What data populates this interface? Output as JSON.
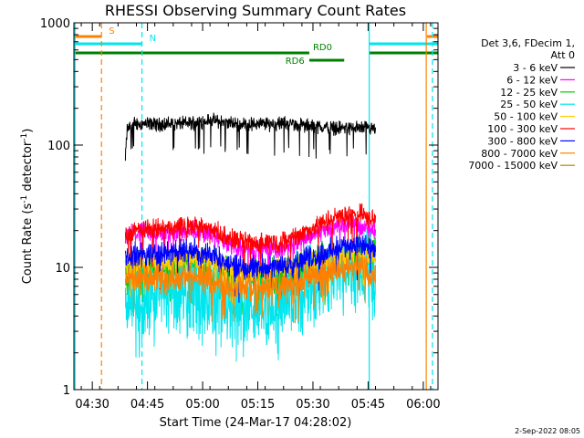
{
  "chart_data": {
    "type": "line",
    "title": "RHESSI Observing Summary Count Rates",
    "xlabel": "Start Time (24-Mar-17 04:28:02)",
    "ylabel": "Count Rate (s",
    "ylabel_sup1": "-1",
    "ylabel_mid": " detector",
    "ylabel_sup2": "-1",
    "ylabel_end": ")",
    "y_scale": "log",
    "ylim": [
      1,
      1000
    ],
    "xlim": [
      -2,
      97
    ],
    "x_ticks": [
      {
        "t": 3,
        "label": "04:30"
      },
      {
        "t": 18,
        "label": "04:45"
      },
      {
        "t": 33,
        "label": "05:00"
      },
      {
        "t": 48,
        "label": "05:15"
      },
      {
        "t": 63,
        "label": "05:30"
      },
      {
        "t": 78,
        "label": "05:45"
      },
      {
        "t": 93,
        "label": "06:00"
      }
    ],
    "y_ticks": [
      {
        "v": 1,
        "label": "1"
      },
      {
        "v": 10,
        "label": "10"
      },
      {
        "v": 100,
        "label": "100"
      },
      {
        "v": 1000,
        "label": "1000"
      }
    ],
    "legend_header": [
      "Det 3,6, FDecim 1,",
      "Att 0"
    ],
    "legend_position": "right",
    "series": [
      {
        "name": "3 - 6 keV",
        "color": "#000000",
        "profile": [
          [
            12,
            75
          ],
          [
            12.5,
            135
          ],
          [
            14,
            150
          ],
          [
            22,
            148
          ],
          [
            30,
            152
          ],
          [
            35,
            160
          ],
          [
            42,
            148
          ],
          [
            55,
            150
          ],
          [
            63,
            142
          ],
          [
            70,
            138
          ],
          [
            78,
            138
          ],
          [
            80,
            130
          ]
        ],
        "noise": 0.035
      },
      {
        "name": "6 - 12 keV",
        "color": "#ff00ff",
        "profile": [
          [
            12,
            17
          ],
          [
            14,
            19
          ],
          [
            22,
            19
          ],
          [
            30,
            20
          ],
          [
            35,
            19
          ],
          [
            40,
            15
          ],
          [
            46,
            14
          ],
          [
            54,
            14
          ],
          [
            60,
            17
          ],
          [
            66,
            20
          ],
          [
            72,
            23
          ],
          [
            76,
            22
          ],
          [
            80,
            20
          ]
        ],
        "noise": 0.05
      },
      {
        "name": "12 - 25 keV",
        "color": "#00cc00",
        "profile": [
          [
            12,
            8.5
          ],
          [
            14,
            9.5
          ],
          [
            22,
            10
          ],
          [
            30,
            10.5
          ],
          [
            35,
            10
          ],
          [
            40,
            8.5
          ],
          [
            46,
            8.2
          ],
          [
            54,
            8.5
          ],
          [
            60,
            10
          ],
          [
            66,
            11
          ],
          [
            72,
            12
          ],
          [
            76,
            12.5
          ],
          [
            80,
            12
          ]
        ],
        "noise": 0.1
      },
      {
        "name": "25 - 50 keV",
        "color": "#00e5ee",
        "profile": [
          [
            12,
            5
          ],
          [
            14,
            5.5
          ],
          [
            22,
            6
          ],
          [
            30,
            6.5
          ],
          [
            35,
            6
          ],
          [
            40,
            5.2
          ],
          [
            46,
            4.8
          ],
          [
            54,
            5
          ],
          [
            60,
            6.5
          ],
          [
            66,
            8
          ],
          [
            72,
            10
          ],
          [
            76,
            11
          ],
          [
            80,
            10
          ]
        ],
        "noise": 0.2
      },
      {
        "name": "50 - 100 keV",
        "color": "#ffcc00",
        "profile": [
          [
            12,
            10
          ],
          [
            14,
            11
          ],
          [
            22,
            11
          ],
          [
            30,
            12
          ],
          [
            35,
            11
          ],
          [
            40,
            9.5
          ],
          [
            46,
            9
          ],
          [
            54,
            9.5
          ],
          [
            60,
            10.5
          ],
          [
            66,
            11.5
          ],
          [
            72,
            12.5
          ],
          [
            76,
            13
          ],
          [
            80,
            12
          ]
        ],
        "noise": 0.06
      },
      {
        "name": "100 - 300 keV",
        "color": "#ff0000",
        "profile": [
          [
            12,
            18
          ],
          [
            14,
            20
          ],
          [
            22,
            21
          ],
          [
            30,
            22
          ],
          [
            35,
            21
          ],
          [
            40,
            17
          ],
          [
            46,
            16
          ],
          [
            54,
            16
          ],
          [
            60,
            19
          ],
          [
            66,
            23
          ],
          [
            72,
            27
          ],
          [
            76,
            27
          ],
          [
            80,
            24
          ]
        ],
        "noise": 0.05
      },
      {
        "name": "300 - 800 keV",
        "color": "#0000ff",
        "profile": [
          [
            12,
            12
          ],
          [
            14,
            12.5
          ],
          [
            22,
            13
          ],
          [
            30,
            14
          ],
          [
            35,
            13
          ],
          [
            40,
            10.5
          ],
          [
            46,
            10
          ],
          [
            54,
            10
          ],
          [
            60,
            11.5
          ],
          [
            66,
            13
          ],
          [
            72,
            15
          ],
          [
            76,
            15
          ],
          [
            80,
            14
          ]
        ],
        "noise": 0.06
      },
      {
        "name": "800 - 7000 keV",
        "color": "#ff8000",
        "profile": [
          [
            12,
            7.5
          ],
          [
            14,
            8
          ],
          [
            22,
            8
          ],
          [
            30,
            8.5
          ],
          [
            35,
            8
          ],
          [
            40,
            7
          ],
          [
            46,
            6.8
          ],
          [
            54,
            7
          ],
          [
            60,
            8
          ],
          [
            66,
            9
          ],
          [
            72,
            10
          ],
          [
            76,
            10
          ],
          [
            80,
            8
          ]
        ],
        "noise": 0.07
      },
      {
        "name": "7000 - 15000 keV",
        "color": "#b8860b",
        "profile": [],
        "noise": 0
      }
    ],
    "vertical_lines": [
      {
        "t": -1.7,
        "color": "#00e5ee",
        "dash": false
      },
      {
        "t": 5.5,
        "color": "#ff8000",
        "dash": true
      },
      {
        "t": 16.5,
        "color": "#00e5ee",
        "dash": true
      },
      {
        "t": 78.3,
        "color": "#00e5ee",
        "dash": false
      },
      {
        "t": 93.8,
        "color": "#ff8000",
        "dash": false
      },
      {
        "t": 95.5,
        "color": "#00e5ee",
        "dash": true
      }
    ],
    "flag_bars": [
      {
        "label": "S",
        "color": "#ff8000",
        "t0": -2,
        "t1": 5.5,
        "y": 40,
        "label_t": 7.5,
        "label_side": "above"
      },
      {
        "label": "N",
        "color": "#00e5ee",
        "t0": -2,
        "t1": 16.5,
        "y": 48,
        "label_t": 18.5,
        "label_side": "above"
      },
      {
        "label": "",
        "color": "#00e5ee",
        "t0": 78.3,
        "t1": 97,
        "y": 48
      },
      {
        "label": "",
        "color": "#ff8000",
        "t0": 94,
        "t1": 97,
        "y": 40
      },
      {
        "label": "RD0",
        "color": "#008000",
        "t0": -2,
        "t1": 62,
        "y": 58,
        "label_t": 63,
        "label_side": "above"
      },
      {
        "label": "RD6",
        "color": "#008000",
        "t0": 62,
        "t1": 71.5,
        "y": 66,
        "label_t": 55.5,
        "label_side": "below"
      },
      {
        "label": "",
        "color": "#008000",
        "t0": 78.3,
        "t1": 97,
        "y": 58
      }
    ]
  },
  "footer": {
    "date_stamp": "2-Sep-2022 08:05"
  }
}
